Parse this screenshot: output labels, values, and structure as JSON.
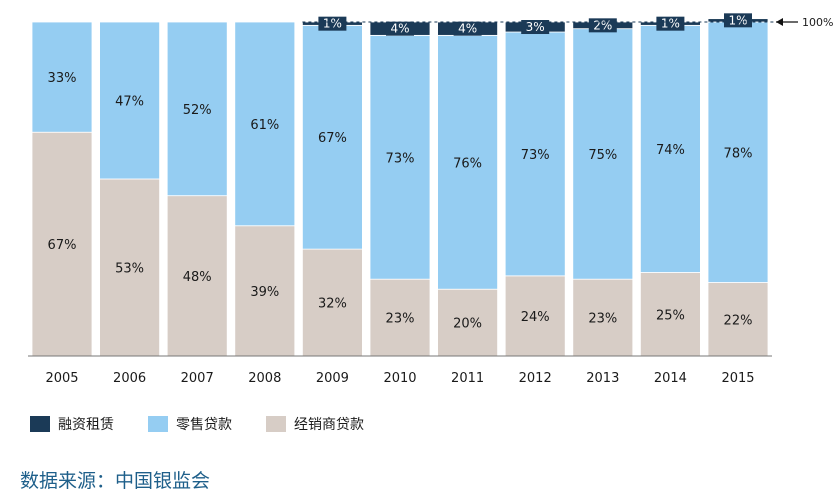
{
  "chart_data": {
    "type": "bar",
    "stacked": true,
    "normalized_percent": true,
    "categories": [
      "2005",
      "2006",
      "2007",
      "2008",
      "2009",
      "2010",
      "2011",
      "2012",
      "2013",
      "2014",
      "2015"
    ],
    "series": [
      {
        "name": "融资租赁",
        "color": "#1b3a57",
        "values": [
          0,
          0,
          0,
          0,
          1,
          4,
          4,
          3,
          2,
          1,
          1
        ],
        "labels": [
          "",
          "",
          "",
          "",
          "1%",
          "4%",
          "4%",
          "3%",
          "2%",
          "1%",
          "1%"
        ]
      },
      {
        "name": "零售贷款",
        "color": "#95cdf2",
        "values": [
          33,
          47,
          52,
          61,
          67,
          73,
          76,
          73,
          75,
          74,
          78
        ],
        "labels": [
          "33%",
          "47%",
          "52%",
          "61%",
          "67%",
          "73%",
          "76%",
          "73%",
          "75%",
          "74%",
          "78%"
        ]
      },
      {
        "name": "经销商贷款",
        "color": "#d7cdc6",
        "values": [
          67,
          53,
          48,
          39,
          32,
          23,
          20,
          24,
          23,
          25,
          22
        ],
        "labels": [
          "67%",
          "53%",
          "48%",
          "39%",
          "32%",
          "23%",
          "20%",
          "24%",
          "23%",
          "25%",
          "22%"
        ]
      }
    ],
    "reference_label": "100%",
    "ylim": [
      0,
      100
    ],
    "grid": false,
    "legend_position": "bottom-left"
  },
  "source_text": "数据来源：中国银监会"
}
